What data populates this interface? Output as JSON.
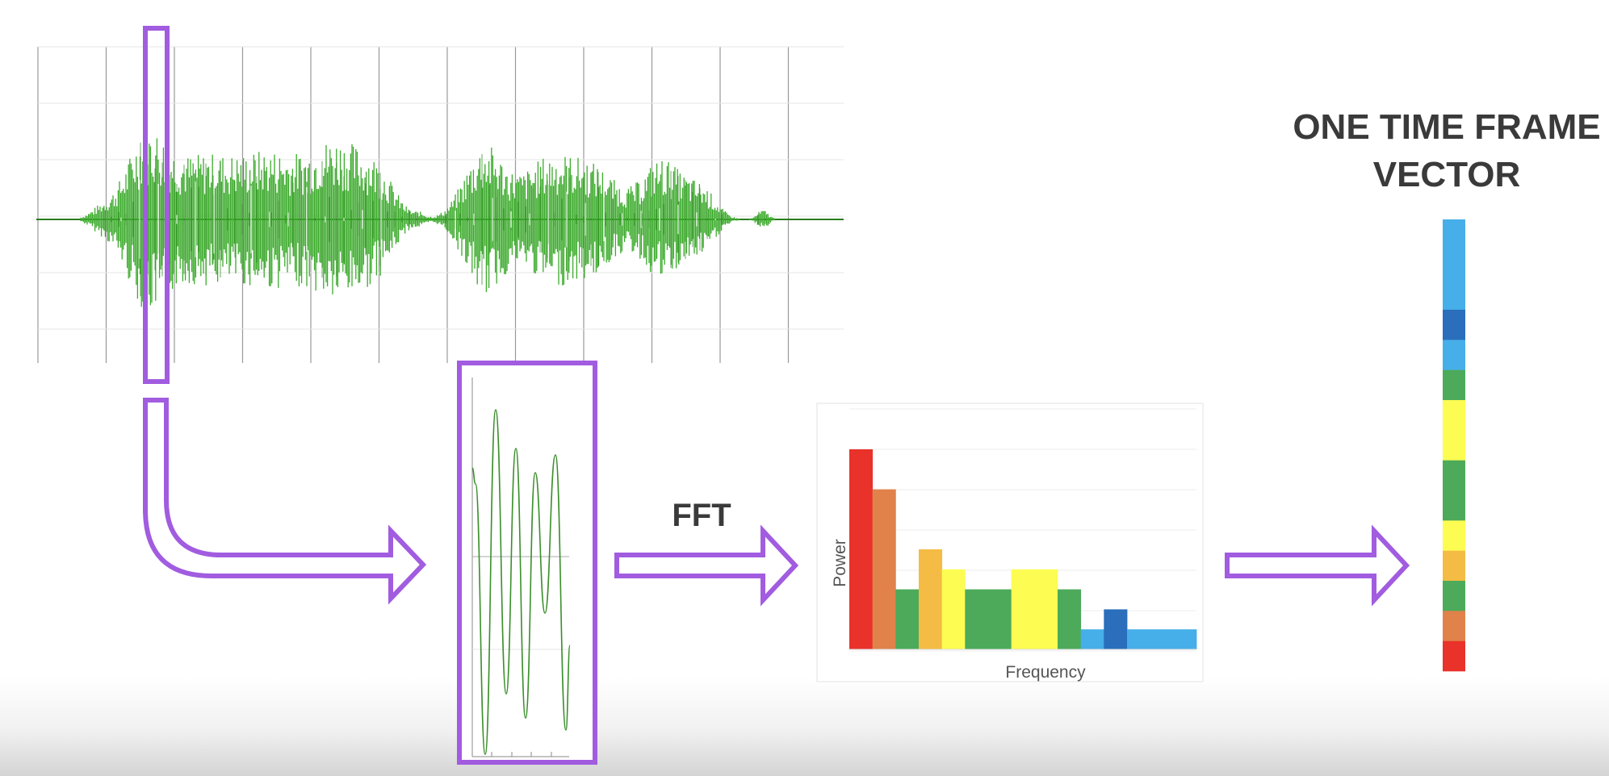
{
  "labels": {
    "fft": "FFT",
    "vector_title_line1": "ONE TIME FRAME",
    "vector_title_line2": "VECTOR",
    "spectrum_ylabel": "Power",
    "spectrum_xlabel": "Frequency"
  },
  "colors": {
    "waveform": "#3cab2c",
    "waveform_dark": "#2b7d1e",
    "outline_purple": "#a15ce0",
    "text": "#3a3a3a",
    "red": "#e8322a",
    "orange": "#e0824a",
    "green": "#4caa5a",
    "amber": "#f4bc44",
    "yellow": "#fcfc52",
    "blue": "#46aee8",
    "dark_blue": "#2a6ebc"
  },
  "spectrum_bars": [
    {
      "value": 1.0,
      "color": "red"
    },
    {
      "value": 0.8,
      "color": "orange"
    },
    {
      "value": 0.3,
      "color": "green"
    },
    {
      "value": 0.5,
      "color": "amber"
    },
    {
      "value": 0.4,
      "color": "yellow"
    },
    {
      "value": 0.3,
      "color": "green"
    },
    {
      "value": 0.3,
      "color": "green"
    },
    {
      "value": 0.4,
      "color": "yellow"
    },
    {
      "value": 0.4,
      "color": "yellow"
    },
    {
      "value": 0.3,
      "color": "green"
    },
    {
      "value": 0.1,
      "color": "blue"
    },
    {
      "value": 0.2,
      "color": "dark_blue"
    },
    {
      "value": 0.1,
      "color": "blue"
    },
    {
      "value": 0.1,
      "color": "blue"
    },
    {
      "value": 0.1,
      "color": "blue"
    }
  ],
  "vector_segments": [
    {
      "color": "blue",
      "weight": 3
    },
    {
      "color": "dark_blue",
      "weight": 1
    },
    {
      "color": "blue",
      "weight": 1
    },
    {
      "color": "green",
      "weight": 1
    },
    {
      "color": "yellow",
      "weight": 2
    },
    {
      "color": "green",
      "weight": 2
    },
    {
      "color": "yellow",
      "weight": 1
    },
    {
      "color": "amber",
      "weight": 1
    },
    {
      "color": "green",
      "weight": 1
    },
    {
      "color": "orange",
      "weight": 1
    },
    {
      "color": "red",
      "weight": 1
    }
  ]
}
